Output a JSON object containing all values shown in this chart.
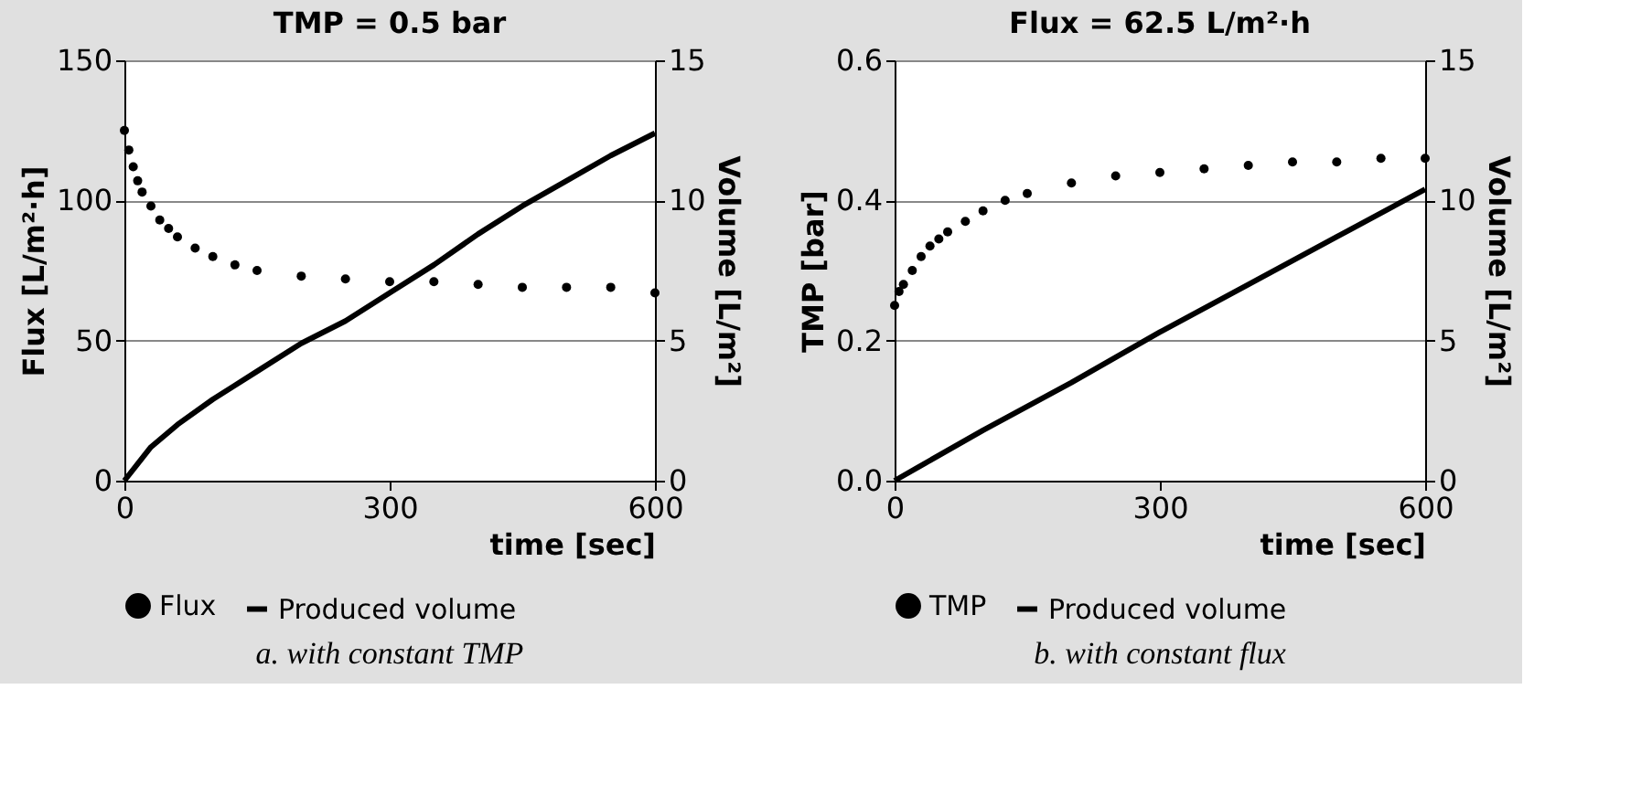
{
  "chart_data": [
    {
      "type": "scatter",
      "title": "TMP = 0.5 bar",
      "xlabel": "time [sec]",
      "ylabel": "Flux [L/m²·h]",
      "y2label": "Volume [L/m²]",
      "series": [
        {
          "name": "Flux",
          "color": "#000000",
          "marker": "circle",
          "x": [
            0,
            5,
            10,
            15,
            20,
            30,
            40,
            50,
            60,
            80,
            100,
            125,
            150,
            200,
            250,
            300,
            350,
            400,
            450,
            500,
            550,
            600
          ],
          "values": [
            125,
            118,
            112,
            107,
            103,
            98,
            93,
            90,
            87,
            83,
            80,
            77,
            75,
            73,
            72,
            71,
            71,
            70,
            69,
            69,
            69,
            67
          ]
        },
        {
          "name": "Produced volume",
          "type": "line",
          "axis": "y2",
          "color": "#000000",
          "line_style": "solid",
          "x": [
            0,
            30,
            60,
            100,
            150,
            200,
            250,
            300,
            350,
            400,
            450,
            500,
            550,
            600
          ],
          "values": [
            0,
            1.2,
            2.0,
            2.9,
            3.9,
            4.9,
            5.7,
            6.7,
            7.7,
            8.8,
            9.8,
            10.7,
            11.6,
            12.4
          ]
        }
      ],
      "xlim": [
        0,
        600
      ],
      "xticks": [
        0,
        300,
        600
      ],
      "ylim": [
        0,
        150
      ],
      "yticks": [
        0,
        50,
        100,
        150
      ],
      "y2lim": [
        0,
        15
      ],
      "y2ticks": [
        0,
        5,
        10,
        15
      ],
      "grid": "y",
      "legend": "bottom",
      "annotations": [
        "a. with constant TMP"
      ]
    },
    {
      "type": "scatter",
      "title": "Flux = 62.5 L/m²·h",
      "xlabel": "time [sec]",
      "ylabel": "TMP [bar]",
      "y2label": "Volume [L/m²]",
      "series": [
        {
          "name": "TMP",
          "color": "#000000",
          "marker": "circle",
          "x": [
            0,
            5,
            10,
            20,
            30,
            40,
            50,
            60,
            80,
            100,
            125,
            150,
            200,
            250,
            300,
            350,
            400,
            450,
            500,
            550,
            600
          ],
          "values": [
            0.25,
            0.27,
            0.28,
            0.3,
            0.32,
            0.335,
            0.345,
            0.355,
            0.37,
            0.385,
            0.4,
            0.41,
            0.425,
            0.435,
            0.44,
            0.445,
            0.45,
            0.455,
            0.455,
            0.46,
            0.46
          ]
        },
        {
          "name": "Produced volume",
          "type": "line",
          "axis": "y2",
          "color": "#000000",
          "line_style": "solid",
          "x": [
            0,
            100,
            200,
            300,
            400,
            500,
            600
          ],
          "values": [
            0,
            1.8,
            3.5,
            5.3,
            7.0,
            8.7,
            10.4
          ]
        }
      ],
      "xlim": [
        0,
        600
      ],
      "xticks": [
        0,
        300,
        600
      ],
      "ylim": [
        0,
        0.6
      ],
      "yticks": [
        {
          "value": 0,
          "label": "0.0"
        },
        0.2,
        0.4,
        0.6
      ],
      "y2lim": [
        0,
        15
      ],
      "y2ticks": [
        0,
        5,
        10,
        15
      ],
      "grid": "y",
      "legend": "bottom",
      "annotations": [
        "b. with constant flux"
      ]
    }
  ]
}
